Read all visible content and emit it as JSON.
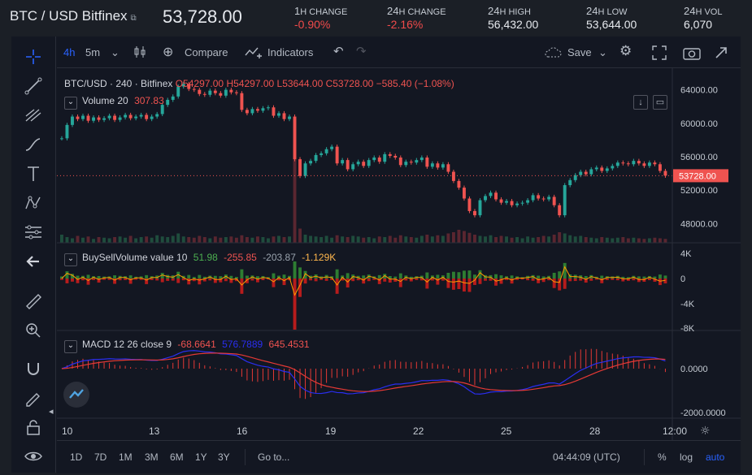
{
  "ticker": {
    "symbol": "BTC / USD Bitfinex",
    "price": "53,728.00",
    "stats": [
      {
        "label_big": "1",
        "label_small": "H CHANGE",
        "value": "-0.90%",
        "neg": true
      },
      {
        "label_big": "24",
        "label_small": "H CHANGE",
        "value": "-2.16%",
        "neg": true
      },
      {
        "label_big": "24",
        "label_small": "H HIGH",
        "value": "56,432.00",
        "neg": false
      },
      {
        "label_big": "24",
        "label_small": "H LOW",
        "value": "53,644.00",
        "neg": false
      },
      {
        "label_big": "24",
        "label_small": "H VOL",
        "value": "6,070",
        "neg": false
      }
    ]
  },
  "toolbar": {
    "interval": "4h",
    "interval2": "5m",
    "compare": "Compare",
    "indicators": "Indicators",
    "save": "Save"
  },
  "main_legend": {
    "symbol": "BTC/USD · 240 · Bitfinex",
    "open": "O54297.00",
    "high": "H54297.00",
    "low": "L53644.00",
    "close": "C53728.00",
    "change": "−585.40 (−1.08%)",
    "volume_label": "Volume 20",
    "volume_value": "307.83"
  },
  "bsv_legend": {
    "label": "BuySellVolume value 10",
    "v1": "51.98",
    "v2": "-255.85",
    "v3": "-203.87",
    "v4": "-1.129K"
  },
  "macd_legend": {
    "label": "MACD 12 26 close 9",
    "v1": "-68.6641",
    "v2": "576.7889",
    "v3": "645.4531"
  },
  "price_axis": [
    "64000.00",
    "60000.00",
    "56000.00",
    "52000.00",
    "48000.00"
  ],
  "last_price_label": "53728.00",
  "bsv_axis": [
    "4K",
    "0",
    "-4K",
    "-8K"
  ],
  "macd_axis": [
    "0.0000",
    "-2000.0000"
  ],
  "time_axis": [
    "10",
    "13",
    "16",
    "19",
    "22",
    "25",
    "28",
    "12:00"
  ],
  "bottom": {
    "ranges": [
      "1D",
      "7D",
      "1M",
      "3M",
      "6M",
      "1Y",
      "3Y"
    ],
    "goto": "Go to...",
    "clock": "04:44:09 (UTC)",
    "percent": "%",
    "log": "log",
    "auto": "auto"
  },
  "chart_data": {
    "type": "candlestick",
    "x_start": "10",
    "ylim": [
      46000,
      66000
    ],
    "close_series": [
      58200,
      59800,
      60800,
      60500,
      60900,
      60300,
      60700,
      60400,
      60600,
      60900,
      60400,
      60700,
      61000,
      60600,
      60800,
      61000,
      60500,
      60800,
      61100,
      62200,
      62800,
      63200,
      64400,
      64700,
      64100,
      64000,
      63500,
      63400,
      63900,
      63600,
      63300,
      64000,
      63700,
      63600,
      61600,
      61200,
      61700,
      61500,
      61800,
      61900,
      60900,
      61200,
      60500,
      60800,
      55700,
      53700,
      55200,
      55500,
      56200,
      56400,
      56900,
      57200,
      55200,
      55600,
      54500,
      55100,
      55400,
      54900,
      55600,
      55900,
      55400,
      56300,
      56100,
      55900,
      55000,
      55400,
      55300,
      55600,
      55900,
      54800,
      55200,
      54700,
      55100,
      54200,
      53100,
      52300,
      51000,
      49500,
      49000,
      50800,
      51300,
      51700,
      50900,
      50500,
      50700,
      50200,
      50400,
      50500,
      50800,
      51400,
      51000,
      50900,
      51200,
      50200,
      49000,
      52600,
      53200,
      53800,
      54200,
      53900,
      54500,
      54700,
      54300,
      54600,
      54900,
      55300,
      55200,
      55100,
      55500,
      55200,
      54900,
      55300,
      55100,
      54300,
      53728
    ],
    "volume_series": [
      12,
      8,
      6,
      10,
      7,
      9,
      5,
      8,
      7,
      6,
      8,
      9,
      7,
      10,
      6,
      8,
      9,
      7,
      11,
      9,
      8,
      10,
      14,
      9,
      8,
      7,
      10,
      8,
      6,
      9,
      7,
      8,
      9,
      7,
      11,
      8,
      7,
      9,
      8,
      6,
      9,
      10,
      8,
      9,
      48,
      22,
      12,
      10,
      9,
      8,
      10,
      7,
      11,
      9,
      8,
      10,
      9,
      7,
      8,
      6,
      9,
      8,
      10,
      7,
      11,
      9,
      8,
      7,
      10,
      12,
      9,
      11,
      10,
      14,
      16,
      20,
      18,
      15,
      12,
      10,
      9,
      11,
      8,
      10,
      9,
      7,
      8,
      6,
      9,
      7,
      8,
      10,
      9,
      12,
      16,
      14,
      11,
      9,
      10,
      8,
      7,
      6,
      8,
      7,
      6,
      7,
      8,
      6,
      7,
      6,
      5,
      6,
      7,
      6,
      5
    ]
  },
  "colors": {
    "up": "#26a69a",
    "down": "#ef5350",
    "bg": "#131722",
    "macd_line": "#2a2ef0",
    "signal_line": "#e53935"
  }
}
